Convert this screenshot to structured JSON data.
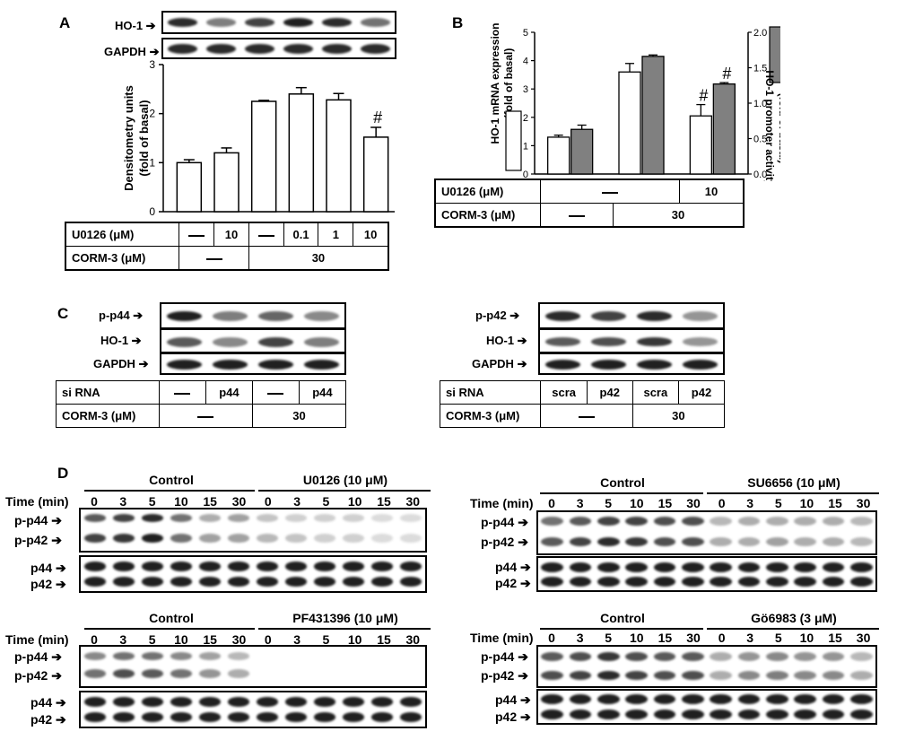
{
  "panels": {
    "A": "A",
    "B": "B",
    "C": "C",
    "D": "D"
  },
  "labels": {
    "ho1": "HO-1",
    "gapdh": "GAPDH",
    "pp44": "p-p44",
    "pp42": "p-p42",
    "p44": "p44",
    "p42": "p42",
    "sirna": "si RNA",
    "u0126": "U0126 (μM)",
    "corm": "CORM-3 (μM)",
    "time": "Time (min)"
  },
  "tableA": {
    "u0126": [
      "—",
      "10",
      "—",
      "0.1",
      "1",
      "10"
    ],
    "corm_low": "—",
    "corm_high": "30"
  },
  "tableB": {
    "u0126_low": "—",
    "u0126_high": "10",
    "corm_low": "—",
    "corm_high": "30"
  },
  "tableC1": {
    "sirna": [
      "—",
      "p44",
      "—",
      "p44"
    ],
    "corm_low": "—",
    "corm_high": "30"
  },
  "tableC2": {
    "sirna": [
      "scra",
      "p42",
      "scra",
      "p42"
    ],
    "corm_low": "—",
    "corm_high": "30"
  },
  "panelD": {
    "times": [
      "0",
      "3",
      "5",
      "10",
      "15",
      "30",
      "0",
      "3",
      "5",
      "10",
      "15",
      "30"
    ],
    "groups": [
      {
        "control": "Control",
        "inhibitor": "U0126 (10 μM)"
      },
      {
        "control": "Control",
        "inhibitor": "SU6656 (10 μM)"
      },
      {
        "control": "Control",
        "inhibitor": "PF431396 (10 μM)"
      },
      {
        "control": "Control",
        "inhibitor": "Gö6983 (3 μM)"
      }
    ]
  },
  "chart_data": [
    {
      "type": "bar",
      "categories": [
        "1",
        "2",
        "3",
        "4",
        "5",
        "6"
      ],
      "values": [
        1.0,
        1.2,
        2.25,
        2.4,
        2.28,
        1.52
      ],
      "errors": [
        0.06,
        0.1,
        0.02,
        0.13,
        0.13,
        0.2
      ],
      "annotations": [
        "",
        "",
        "",
        "",
        "",
        "#"
      ],
      "ylabel": "Densitometry units\n(fold of basal)",
      "ylim": [
        0,
        3
      ],
      "yticks": [
        "0",
        "1",
        "2",
        "3"
      ]
    },
    {
      "type": "bar",
      "categories": [
        "1",
        "2",
        "3"
      ],
      "series": [
        {
          "values": [
            1.3,
            3.6,
            2.05
          ],
          "errors": [
            0.07,
            0.3,
            0.4
          ],
          "axis": "left",
          "color": "#ffffff"
        },
        {
          "values": [
            0.63,
            1.66,
            1.27
          ],
          "errors": [
            0.06,
            0.02,
            0.02
          ],
          "axis": "right",
          "color": "#808080"
        }
      ],
      "annotations": [
        [
          "",
          ""
        ],
        [
          "",
          ""
        ],
        [
          "#",
          "#"
        ]
      ],
      "ylabel": "HO-1 mRNA expression\n(fold of basal)",
      "y2label": "HO-1 promoter activity\n(fold of basal)",
      "ylim": [
        0,
        5
      ],
      "y2lim": [
        0,
        2.0
      ],
      "yticks": [
        "0",
        "1",
        "2",
        "3",
        "4",
        "5"
      ],
      "y2ticks": [
        "0.0",
        "0.5",
        "1.0",
        "1.5",
        "2.0"
      ]
    }
  ]
}
